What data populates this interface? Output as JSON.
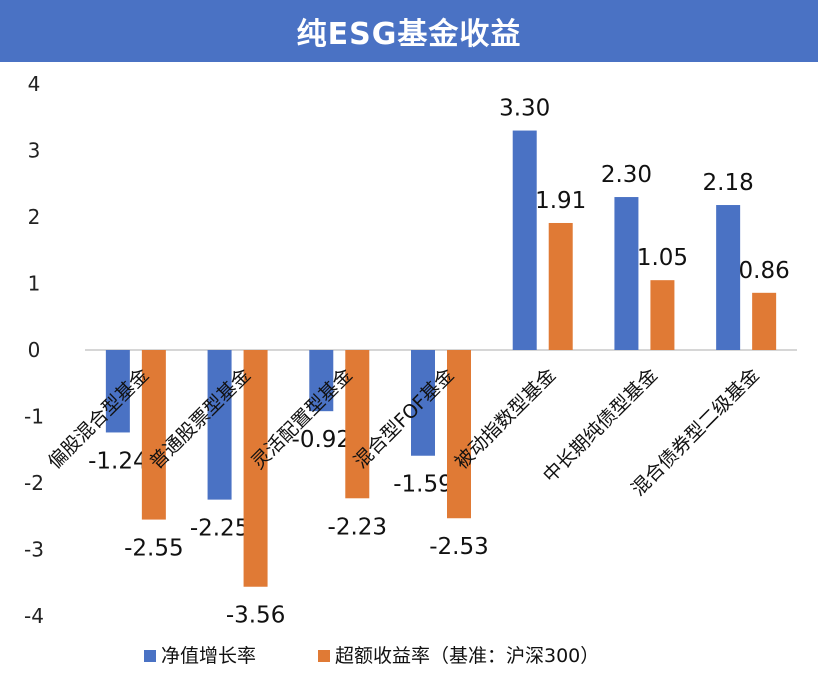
{
  "chart_data": {
    "type": "bar",
    "title": "纯ESG基金收益",
    "categories": [
      "偏股混合型基金",
      "普通股票型基金",
      "灵活配置型基金",
      "混合型FOF基金",
      "被动指数型基金",
      "中长期纯债型基金",
      "混合债券型二级基金"
    ],
    "series": [
      {
        "name": "净值增长率",
        "color": "#4a72c4",
        "values": [
          -1.24,
          -2.25,
          -0.92,
          -1.59,
          3.3,
          2.3,
          2.18
        ]
      },
      {
        "name": "超额收益率（基准：沪深300）",
        "color": "#e07a35",
        "values": [
          -2.55,
          -3.56,
          -2.23,
          -2.53,
          1.91,
          1.05,
          0.86
        ]
      }
    ],
    "ylim": [
      -4,
      4
    ],
    "yticks": [
      4,
      3,
      2,
      1,
      0,
      -1,
      -2,
      -3,
      -4
    ],
    "grid": false,
    "legend_position": "bottom"
  }
}
